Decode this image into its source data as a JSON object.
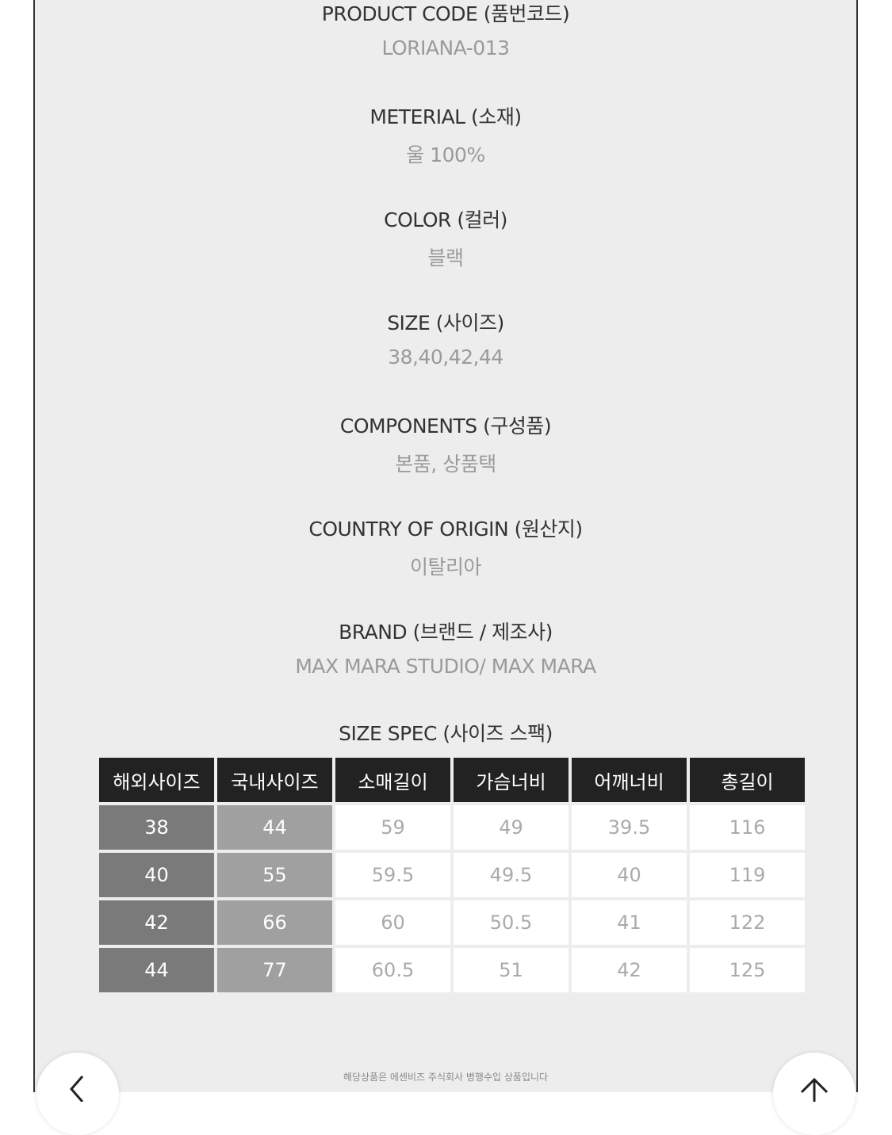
{
  "specs": [
    {
      "label": "PRODUCT CODE (품번코드)",
      "value": "LORIANA-013"
    },
    {
      "label": "METERIAL (소재)",
      "value": "울 100%"
    },
    {
      "label": "COLOR (컬러)",
      "value": "블랙"
    },
    {
      "label": "SIZE (사이즈)",
      "value": "38,40,42,44"
    },
    {
      "label": "COMPONENTS (구성품)",
      "value": "본품, 상품택"
    },
    {
      "label": "COUNTRY OF ORIGIN (원산지)",
      "value": "이탈리아"
    },
    {
      "label": "BRAND (브랜드 / 제조사)",
      "value": "MAX MARA STUDIO/ MAX MARA"
    }
  ],
  "size_spec": {
    "title": "SIZE SPEC (사이즈 스팩)",
    "headers": [
      "해외사이즈",
      "국내사이즈",
      "소매길이",
      "가슴너비",
      "어깨너비",
      "총길이"
    ],
    "rows": [
      [
        "38",
        "44",
        "59",
        "49",
        "39.5",
        "116"
      ],
      [
        "40",
        "55",
        "59.5",
        "49.5",
        "40",
        "119"
      ],
      [
        "42",
        "66",
        "60",
        "50.5",
        "41",
        "122"
      ],
      [
        "44",
        "77",
        "60.5",
        "51",
        "42",
        "125"
      ]
    ]
  },
  "footer_note": "해당상품은 에센비즈 주식회사 병행수입 상품입니다",
  "icons": {
    "back": "arrow-left-icon",
    "top": "arrow-up-icon"
  }
}
